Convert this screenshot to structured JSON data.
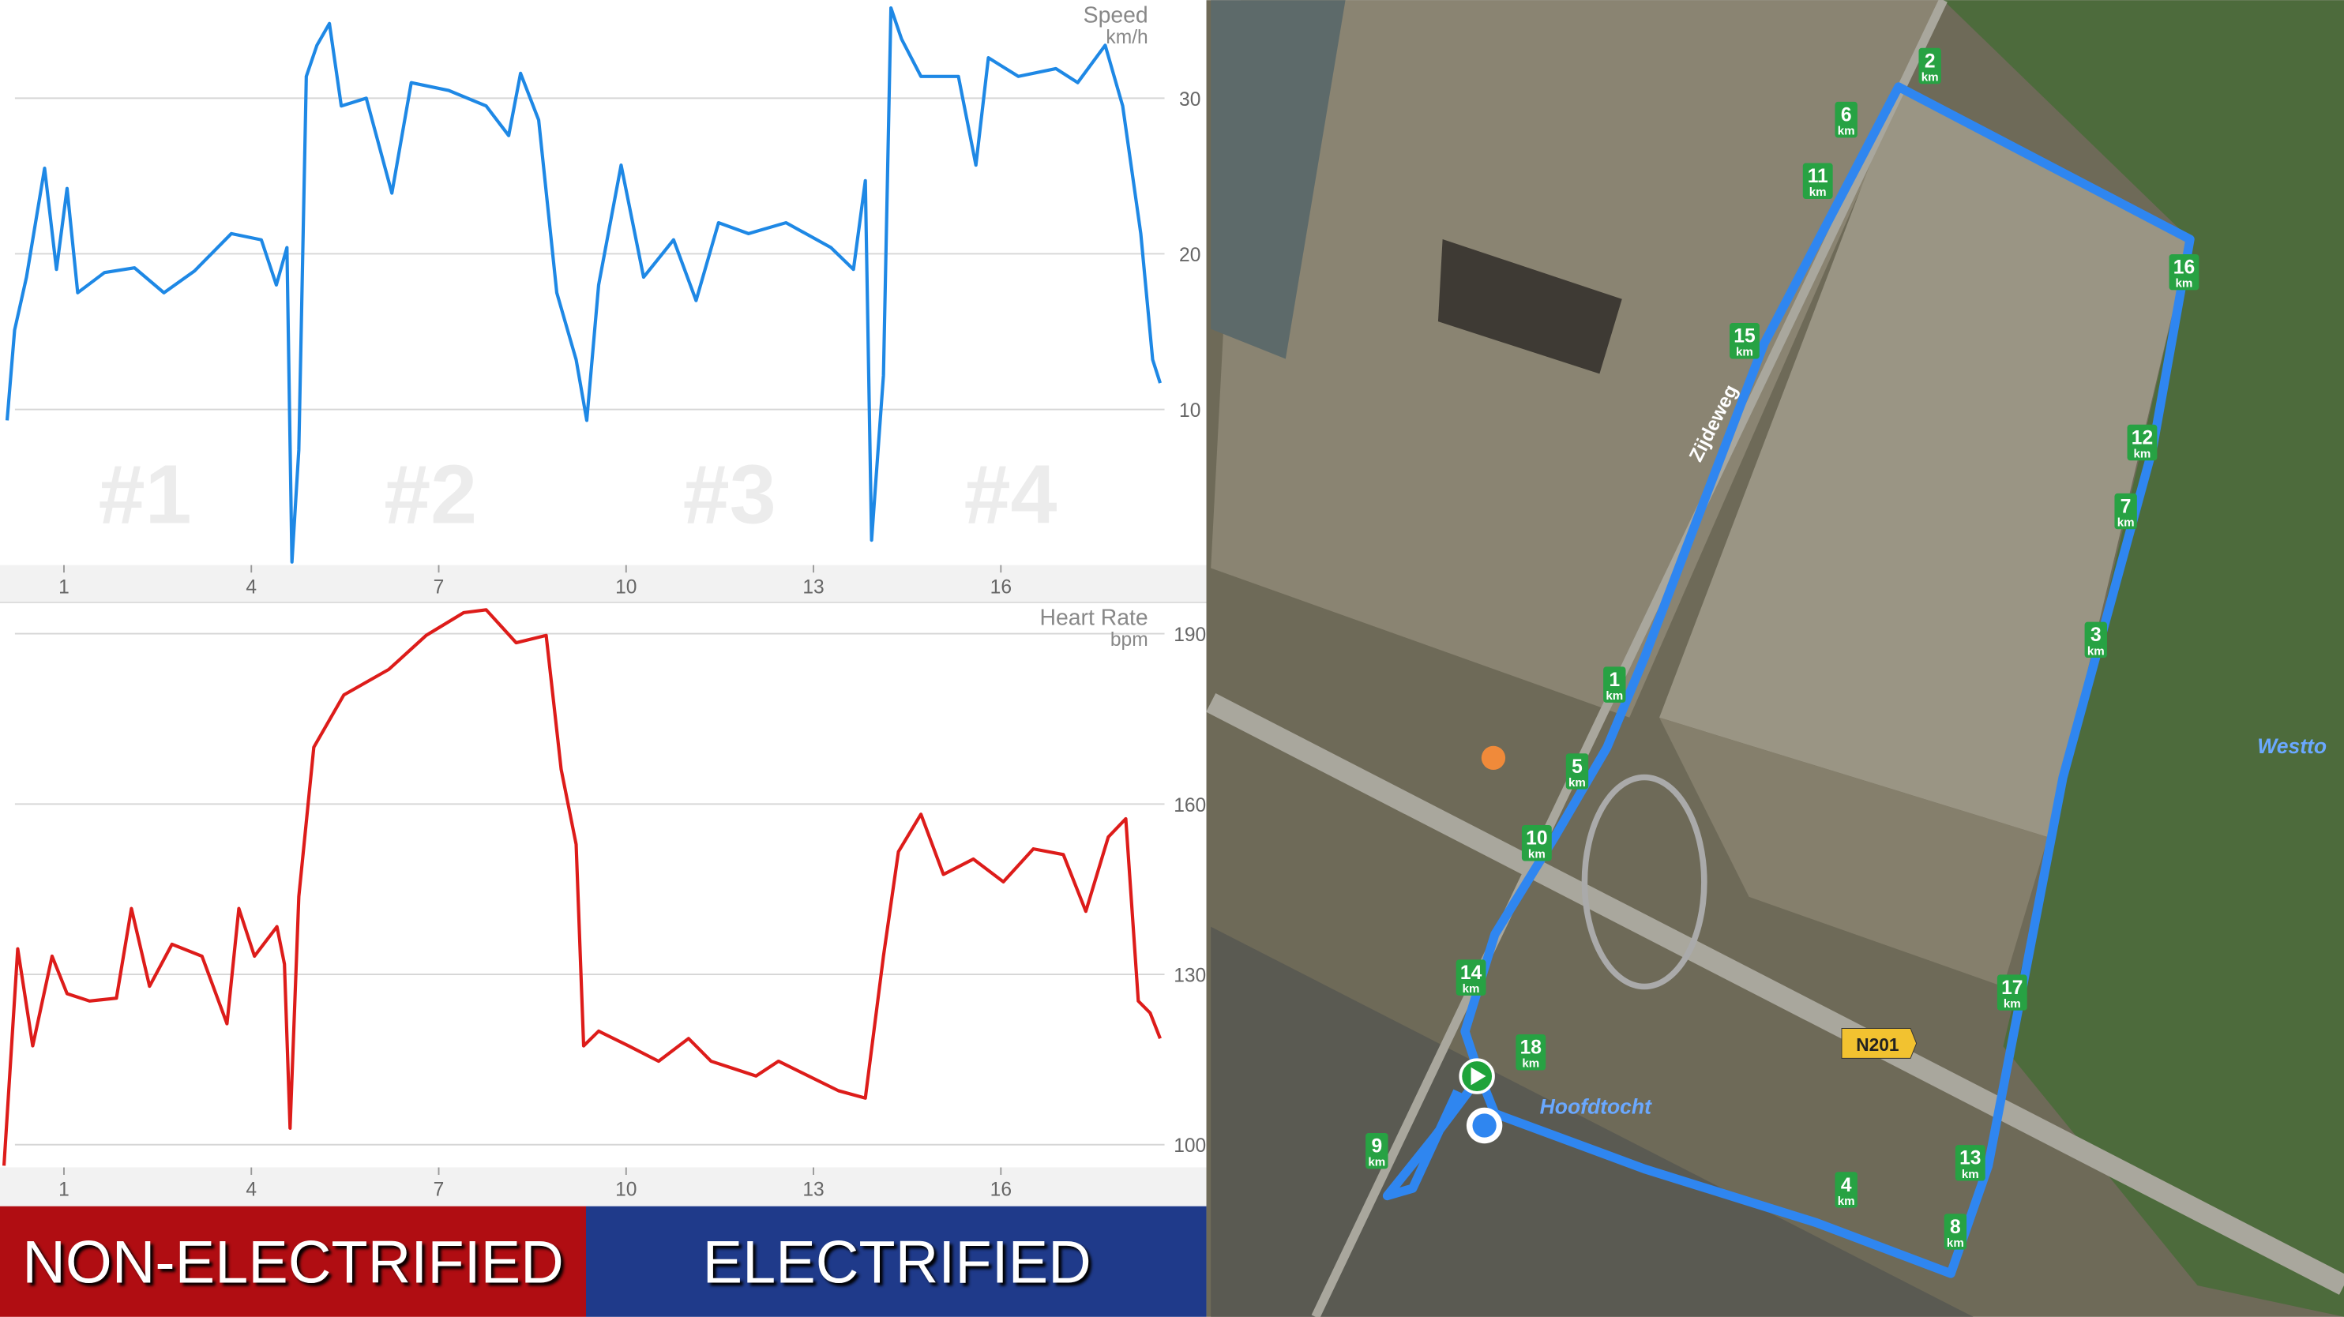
{
  "chart_data": [
    {
      "type": "line",
      "y_label": "Speed",
      "y_unit": "km/h",
      "color": "#1e88e5",
      "x": [
        0.09,
        0.21,
        0.4,
        0.69,
        0.88,
        1.05,
        1.22,
        1.65,
        2.13,
        2.6,
        3.09,
        3.68,
        4.16,
        4.4,
        4.57,
        4.65,
        4.76,
        4.88,
        5.05,
        5.25,
        5.44,
        5.84,
        6.25,
        6.56,
        7.16,
        7.76,
        8.12,
        8.31,
        8.6,
        8.89,
        9.2,
        9.37,
        9.56,
        9.92,
        10.28,
        10.76,
        11.12,
        11.48,
        11.96,
        12.56,
        13.28,
        13.64,
        13.83,
        13.93,
        14.12,
        14.24,
        14.41,
        14.72,
        15.32,
        15.6,
        15.8,
        16.28,
        16.88,
        17.23,
        17.67,
        17.95,
        18.24,
        18.43,
        18.55
      ],
      "values": [
        9.3,
        15.1,
        18.5,
        25.5,
        19,
        24.2,
        17.5,
        18.8,
        19.1,
        17.5,
        18.9,
        21.3,
        20.9,
        18,
        20.4,
        0.2,
        7.4,
        31.4,
        33.4,
        34.8,
        29.5,
        30,
        23.9,
        31,
        30.5,
        29.5,
        27.6,
        31.6,
        28.6,
        17.5,
        13.2,
        9.3,
        18,
        25.7,
        18.5,
        20.9,
        17,
        22,
        21.3,
        22,
        20.4,
        19,
        24.7,
        1.6,
        12.2,
        35.8,
        33.8,
        31.4,
        31.4,
        25.7,
        32.6,
        31.4,
        31.9,
        31,
        33.4,
        29.5,
        21.3,
        13.2,
        11.7
      ],
      "xlim": [
        0,
        18.62
      ],
      "xticks": [
        1,
        4,
        7,
        10,
        13,
        16
      ],
      "ylim": [
        0,
        36.3
      ],
      "yticks": [
        10,
        20,
        30
      ],
      "grid": true,
      "annotations": [
        "#1",
        "#2",
        "#3",
        "#4"
      ]
    },
    {
      "type": "line",
      "y_label": "Heart Rate",
      "y_unit": "bpm",
      "color": "#dd1c1a",
      "x": [
        0.04,
        0.26,
        0.5,
        0.81,
        1.05,
        1.41,
        1.84,
        2.08,
        2.37,
        2.73,
        3.21,
        3.61,
        3.8,
        4.05,
        4.41,
        4.53,
        4.62,
        4.76,
        5.0,
        5.48,
        6.2,
        6.8,
        7.4,
        7.76,
        8.24,
        8.72,
        8.96,
        9.2,
        9.32,
        9.56,
        10.04,
        10.52,
        11.0,
        11.36,
        11.72,
        12.08,
        12.44,
        12.92,
        13.4,
        13.83,
        14.12,
        14.36,
        14.72,
        15.08,
        15.56,
        16.04,
        16.52,
        17.0,
        17.36,
        17.72,
        18.0,
        18.2,
        18.39,
        18.55
      ],
      "values": [
        96.3,
        134.5,
        117.4,
        133.2,
        126.6,
        125.3,
        125.8,
        141.6,
        127.9,
        135.3,
        133.2,
        121.3,
        141.6,
        133.2,
        138.4,
        131.8,
        102.9,
        143.7,
        170,
        179.2,
        183.7,
        189.7,
        193.7,
        194.2,
        188.4,
        189.7,
        166.1,
        152.9,
        117.4,
        120,
        117.4,
        114.7,
        118.7,
        114.7,
        113.4,
        112.1,
        114.7,
        112.1,
        109.5,
        108.2,
        133.2,
        151.6,
        158.2,
        147.6,
        150.3,
        146.3,
        152.1,
        151.1,
        141.1,
        154.2,
        157.4,
        125.3,
        123.2,
        118.7
      ],
      "xlim": [
        0,
        18.62
      ],
      "xticks": [
        1,
        4,
        7,
        10,
        13,
        16
      ],
      "ylim": [
        96,
        195.5
      ],
      "yticks": [
        100,
        130,
        160,
        190
      ],
      "grid": true
    }
  ],
  "banner": [
    "NON-ELECTRIFIED",
    "ELECTRIFIED"
  ],
  "map": {
    "markers": [
      {
        "label": "1",
        "unit": "km"
      },
      {
        "label": "2",
        "unit": "km"
      },
      {
        "label": "3",
        "unit": "km"
      },
      {
        "label": "4",
        "unit": "km"
      },
      {
        "label": "5",
        "unit": "km"
      },
      {
        "label": "6",
        "unit": "km"
      },
      {
        "label": "7",
        "unit": "km"
      },
      {
        "label": "8",
        "unit": "km"
      },
      {
        "label": "9",
        "unit": "km"
      },
      {
        "label": "10",
        "unit": "km"
      },
      {
        "label": "11",
        "unit": "km"
      },
      {
        "label": "12",
        "unit": "km"
      },
      {
        "label": "13",
        "unit": "km"
      },
      {
        "label": "14",
        "unit": "km"
      },
      {
        "label": "15",
        "unit": "km"
      },
      {
        "label": "16",
        "unit": "km"
      },
      {
        "label": "17",
        "unit": "km"
      },
      {
        "label": "18",
        "unit": "km"
      }
    ],
    "road_label": "Zijdeweg",
    "highway_label": "N201",
    "water_label": "Hoofdtocht",
    "place_label": "Westto"
  }
}
